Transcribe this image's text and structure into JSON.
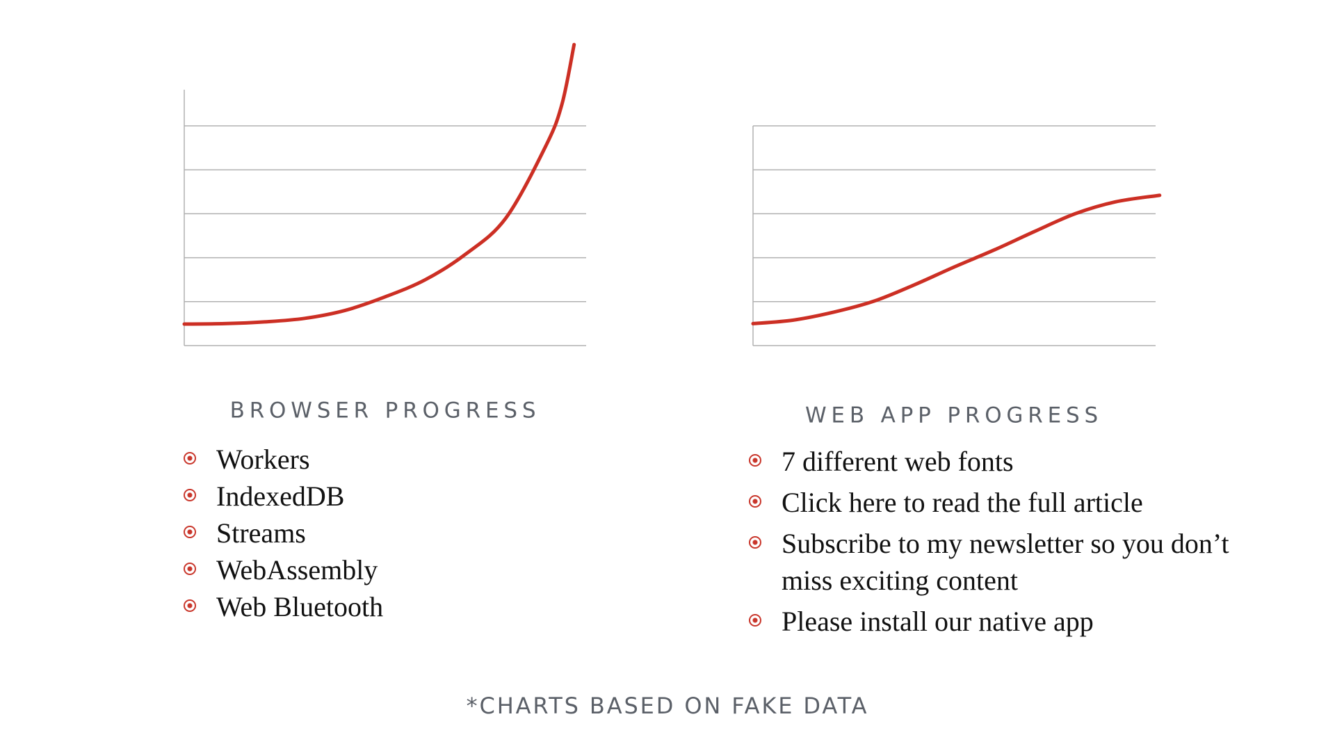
{
  "chart_data": [
    {
      "type": "line",
      "title": "BROWSER PROGRESS",
      "x": [
        0,
        1,
        2,
        3,
        4,
        5,
        6,
        7,
        8,
        9,
        9.4,
        9.7
      ],
      "values": [
        0.49,
        0.5,
        0.54,
        0.62,
        0.8,
        1.11,
        1.5,
        2.08,
        2.9,
        4.55,
        5.5,
        6.85
      ],
      "color": "#cc2f24",
      "xlim": [
        0,
        10
      ],
      "ylim": [
        0,
        5
      ],
      "yticks": [
        0,
        1,
        2,
        3,
        4,
        5
      ],
      "grid": true
    },
    {
      "type": "line",
      "title": "WEB APP PROGRESS",
      "x": [
        0,
        1,
        2,
        3,
        4,
        5,
        6,
        7,
        8,
        9,
        10.1
      ],
      "values": [
        0.5,
        0.58,
        0.76,
        1.01,
        1.38,
        1.79,
        2.18,
        2.6,
        3.0,
        3.27,
        3.42
      ],
      "color": "#cc2f24",
      "xlim": [
        0,
        10
      ],
      "ylim": [
        0,
        5
      ],
      "yticks": [
        0,
        1,
        2,
        3,
        4,
        5
      ],
      "grid": true
    }
  ],
  "lists": [
    [
      "Workers",
      "IndexedDB",
      "Streams",
      "WebAssembly",
      "Web Bluetooth"
    ],
    [
      "7 different web fonts",
      "Click here to read the full article",
      "Subscribe to my newsletter so you don’t miss exciting content",
      "Please install our native app"
    ]
  ],
  "footnote": "*CHARTS BASED ON FAKE DATA"
}
